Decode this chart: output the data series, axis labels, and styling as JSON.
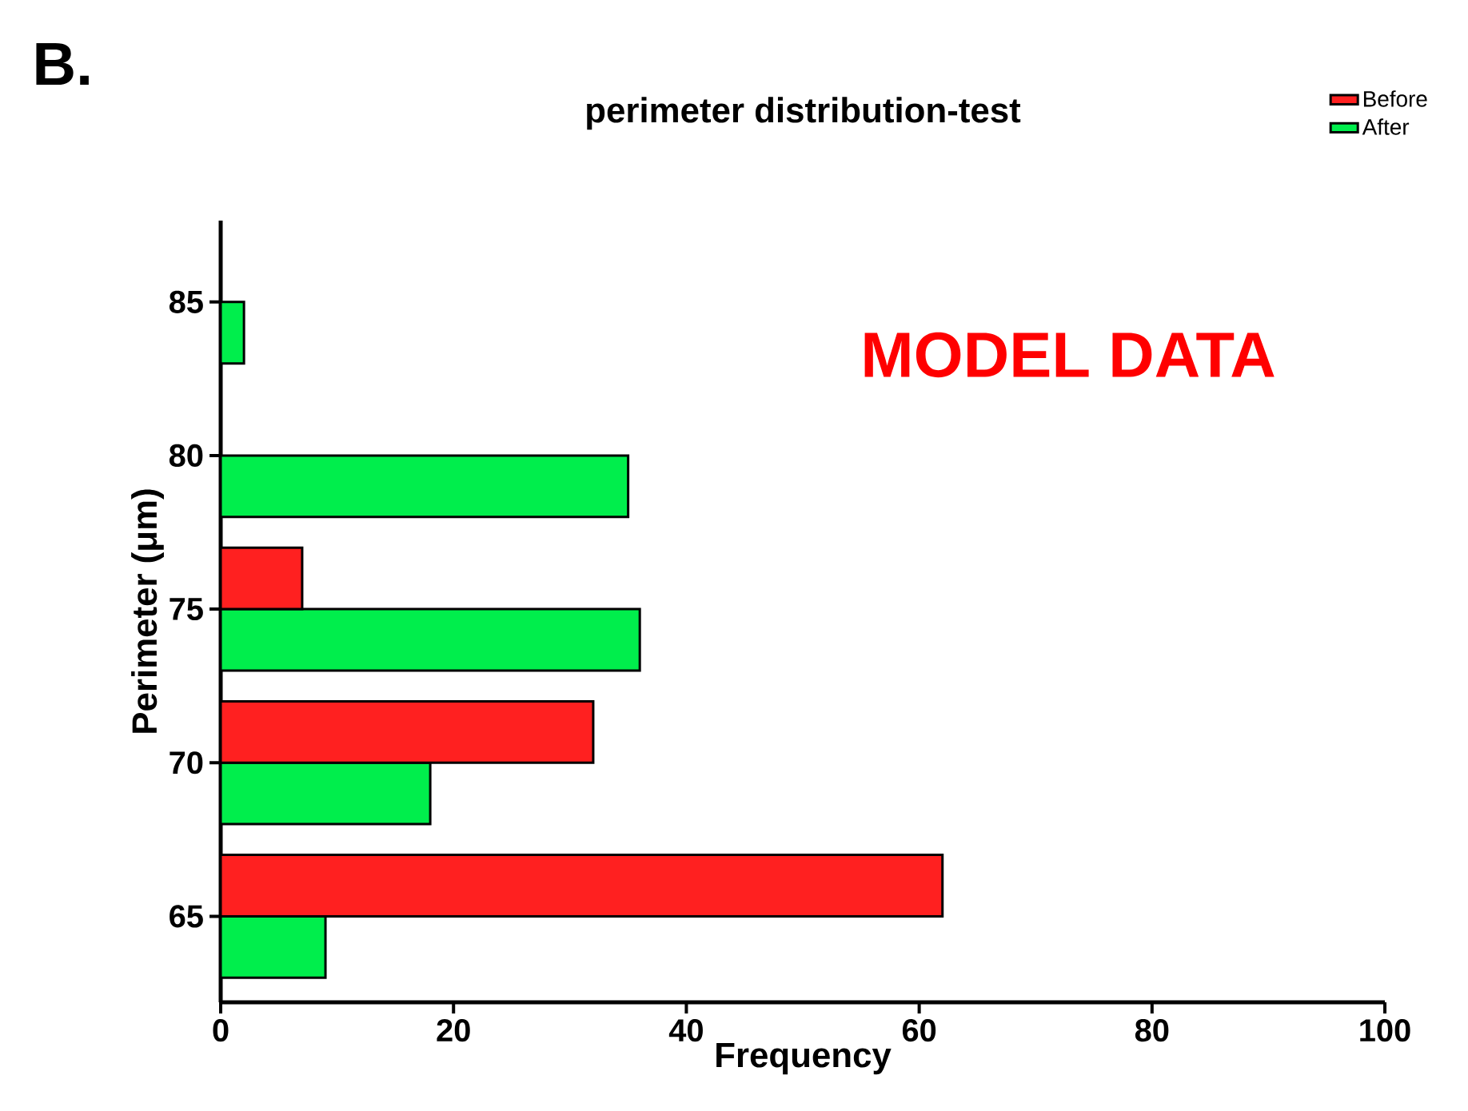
{
  "chart_data": {
    "type": "bar",
    "orientation": "horizontal",
    "title": "perimeter distribution-test",
    "xlabel": "Frequency",
    "ylabel": "Perimeter (μm)",
    "categories": [
      "85",
      "80",
      "75",
      "70",
      "65"
    ],
    "series": [
      {
        "name": "Before",
        "color": "#ff2020",
        "values": [
          null,
          null,
          7,
          32,
          62
        ]
      },
      {
        "name": "After",
        "color": "#00ee4c",
        "values": [
          2,
          35,
          36,
          18,
          9
        ]
      }
    ],
    "xlim": [
      0,
      100
    ],
    "xticks": [
      0,
      20,
      40,
      60,
      80,
      100
    ],
    "legend": "top right",
    "annotations": [
      "B.",
      "MODEL DATA"
    ]
  }
}
